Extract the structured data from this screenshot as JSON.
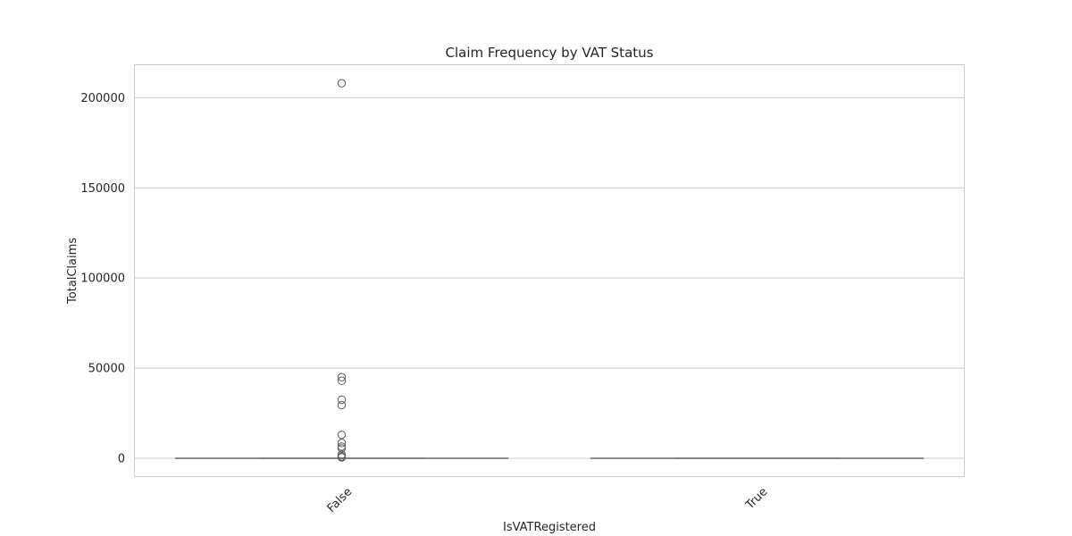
{
  "chart_data": {
    "type": "box",
    "title": "Claim Frequency by VAT Status",
    "xlabel": "IsVATRegistered",
    "ylabel": "TotalClaims",
    "categories": [
      "False",
      "True"
    ],
    "yticks": [
      0,
      50000,
      100000,
      150000,
      200000
    ],
    "ylim": [
      -10400,
      218500
    ],
    "grid": true,
    "series": [
      {
        "category": "False",
        "box": {
          "q1": 0,
          "median": 0,
          "q3": 0,
          "whisker_low": 0,
          "whisker_high": 0
        },
        "outliers": [
          208000,
          45000,
          43000,
          32500,
          29500,
          13000,
          8500,
          6500,
          5500,
          2000,
          1000,
          500
        ]
      },
      {
        "category": "True",
        "box": {
          "q1": 0,
          "median": 0,
          "q3": 0,
          "whisker_low": 0,
          "whisker_high": 0
        },
        "outliers": []
      }
    ],
    "colors": {
      "box_line": "#808080",
      "grid": "#cccccc",
      "frame": "#cccccc",
      "text": "#262626"
    }
  }
}
